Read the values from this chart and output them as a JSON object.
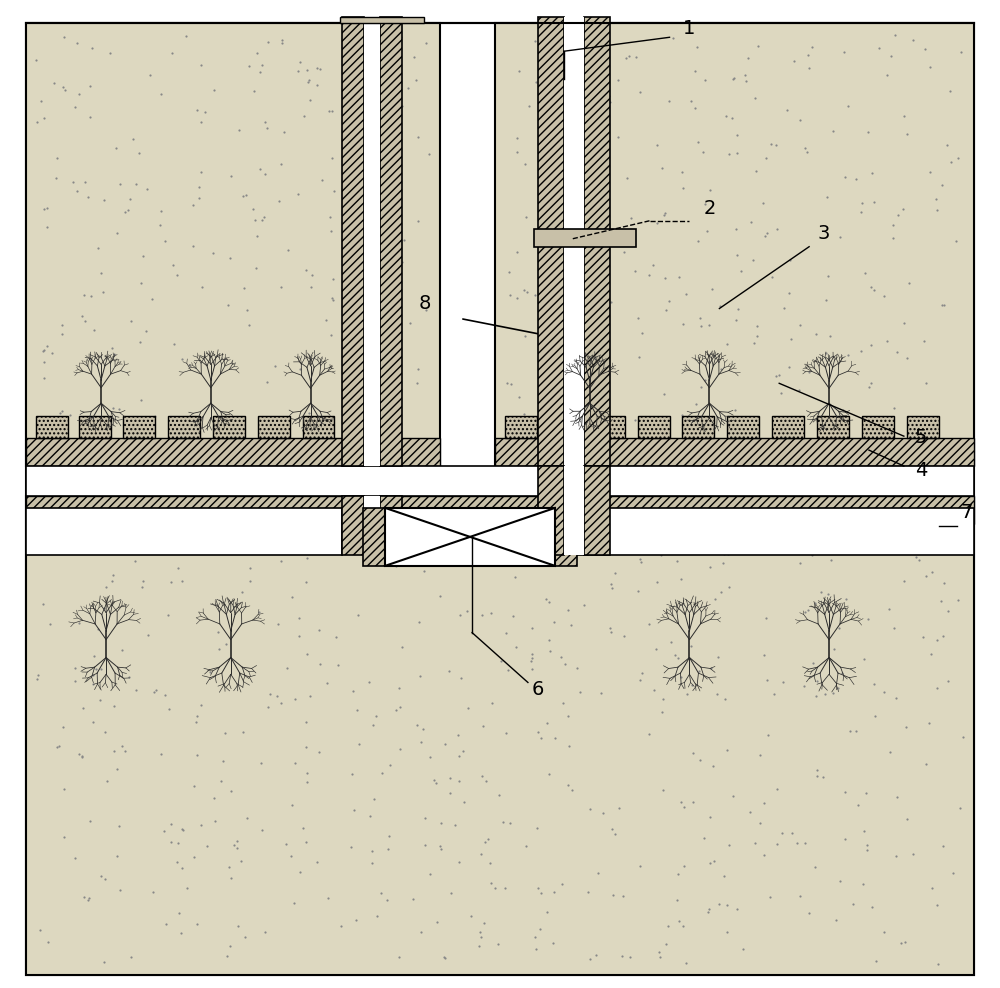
{
  "bg_color": "#ffffff",
  "black": "#000000",
  "sand_fill": "#ddd8c0",
  "hatch_fill": "#c8c0a8",
  "pipe_fill": "#c8c0a8",
  "lw_main": 1.5,
  "lw_thin": 1.0,
  "label_fontsize": 14,
  "fig_width": 10.0,
  "fig_height": 9.88,
  "dpi": 100
}
